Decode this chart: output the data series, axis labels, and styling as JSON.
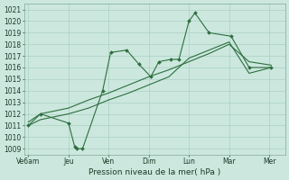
{
  "xlabel": "Pression niveau de la mer( hPa )",
  "bg_color": "#cce8de",
  "grid_color": "#aacfc4",
  "line_color": "#2d6e3e",
  "ylim": [
    1008.5,
    1021.5
  ],
  "xlim": [
    -0.1,
    6.4
  ],
  "xtick_labels": [
    "Ve6am",
    "Jeu",
    "Ven",
    "Dim",
    "Lun",
    "Mar",
    "Mer"
  ],
  "xtick_positions": [
    0,
    1,
    2,
    3,
    4,
    5,
    6
  ],
  "ytick_values": [
    1009,
    1010,
    1011,
    1012,
    1013,
    1014,
    1015,
    1016,
    1017,
    1018,
    1019,
    1020,
    1021
  ],
  "line1_x": [
    0,
    0.3,
    1.0,
    1.15,
    1.2,
    1.35,
    1.85,
    2.05,
    2.45,
    2.75,
    3.05,
    3.25,
    3.55,
    3.75,
    4.0,
    4.15,
    4.5,
    5.05,
    5.5,
    6.05
  ],
  "line1_y": [
    1011,
    1012,
    1011.2,
    1009.2,
    1009.0,
    1009.0,
    1014.0,
    1017.3,
    1017.5,
    1016.3,
    1015.2,
    1016.5,
    1016.7,
    1016.7,
    1020.0,
    1020.7,
    1019.0,
    1018.7,
    1016.0,
    1016.0
  ],
  "line2_x": [
    0,
    0.3,
    1.0,
    1.5,
    2.0,
    2.5,
    3.0,
    3.5,
    4.0,
    4.5,
    5.0,
    5.5,
    6.05
  ],
  "line2_y": [
    1011.0,
    1011.5,
    1012.0,
    1012.5,
    1013.2,
    1013.8,
    1014.5,
    1015.2,
    1016.8,
    1017.5,
    1018.2,
    1015.5,
    1016.0
  ],
  "line3_x": [
    0,
    0.3,
    1.0,
    1.5,
    2.0,
    2.5,
    3.0,
    3.5,
    4.0,
    4.5,
    5.0,
    5.5,
    6.05
  ],
  "line3_y": [
    1011.3,
    1012.0,
    1012.5,
    1013.2,
    1013.8,
    1014.5,
    1015.2,
    1015.8,
    1016.5,
    1017.2,
    1018.0,
    1016.5,
    1016.2
  ],
  "xlabel_fontsize": 6.5,
  "tick_fontsize": 5.5
}
